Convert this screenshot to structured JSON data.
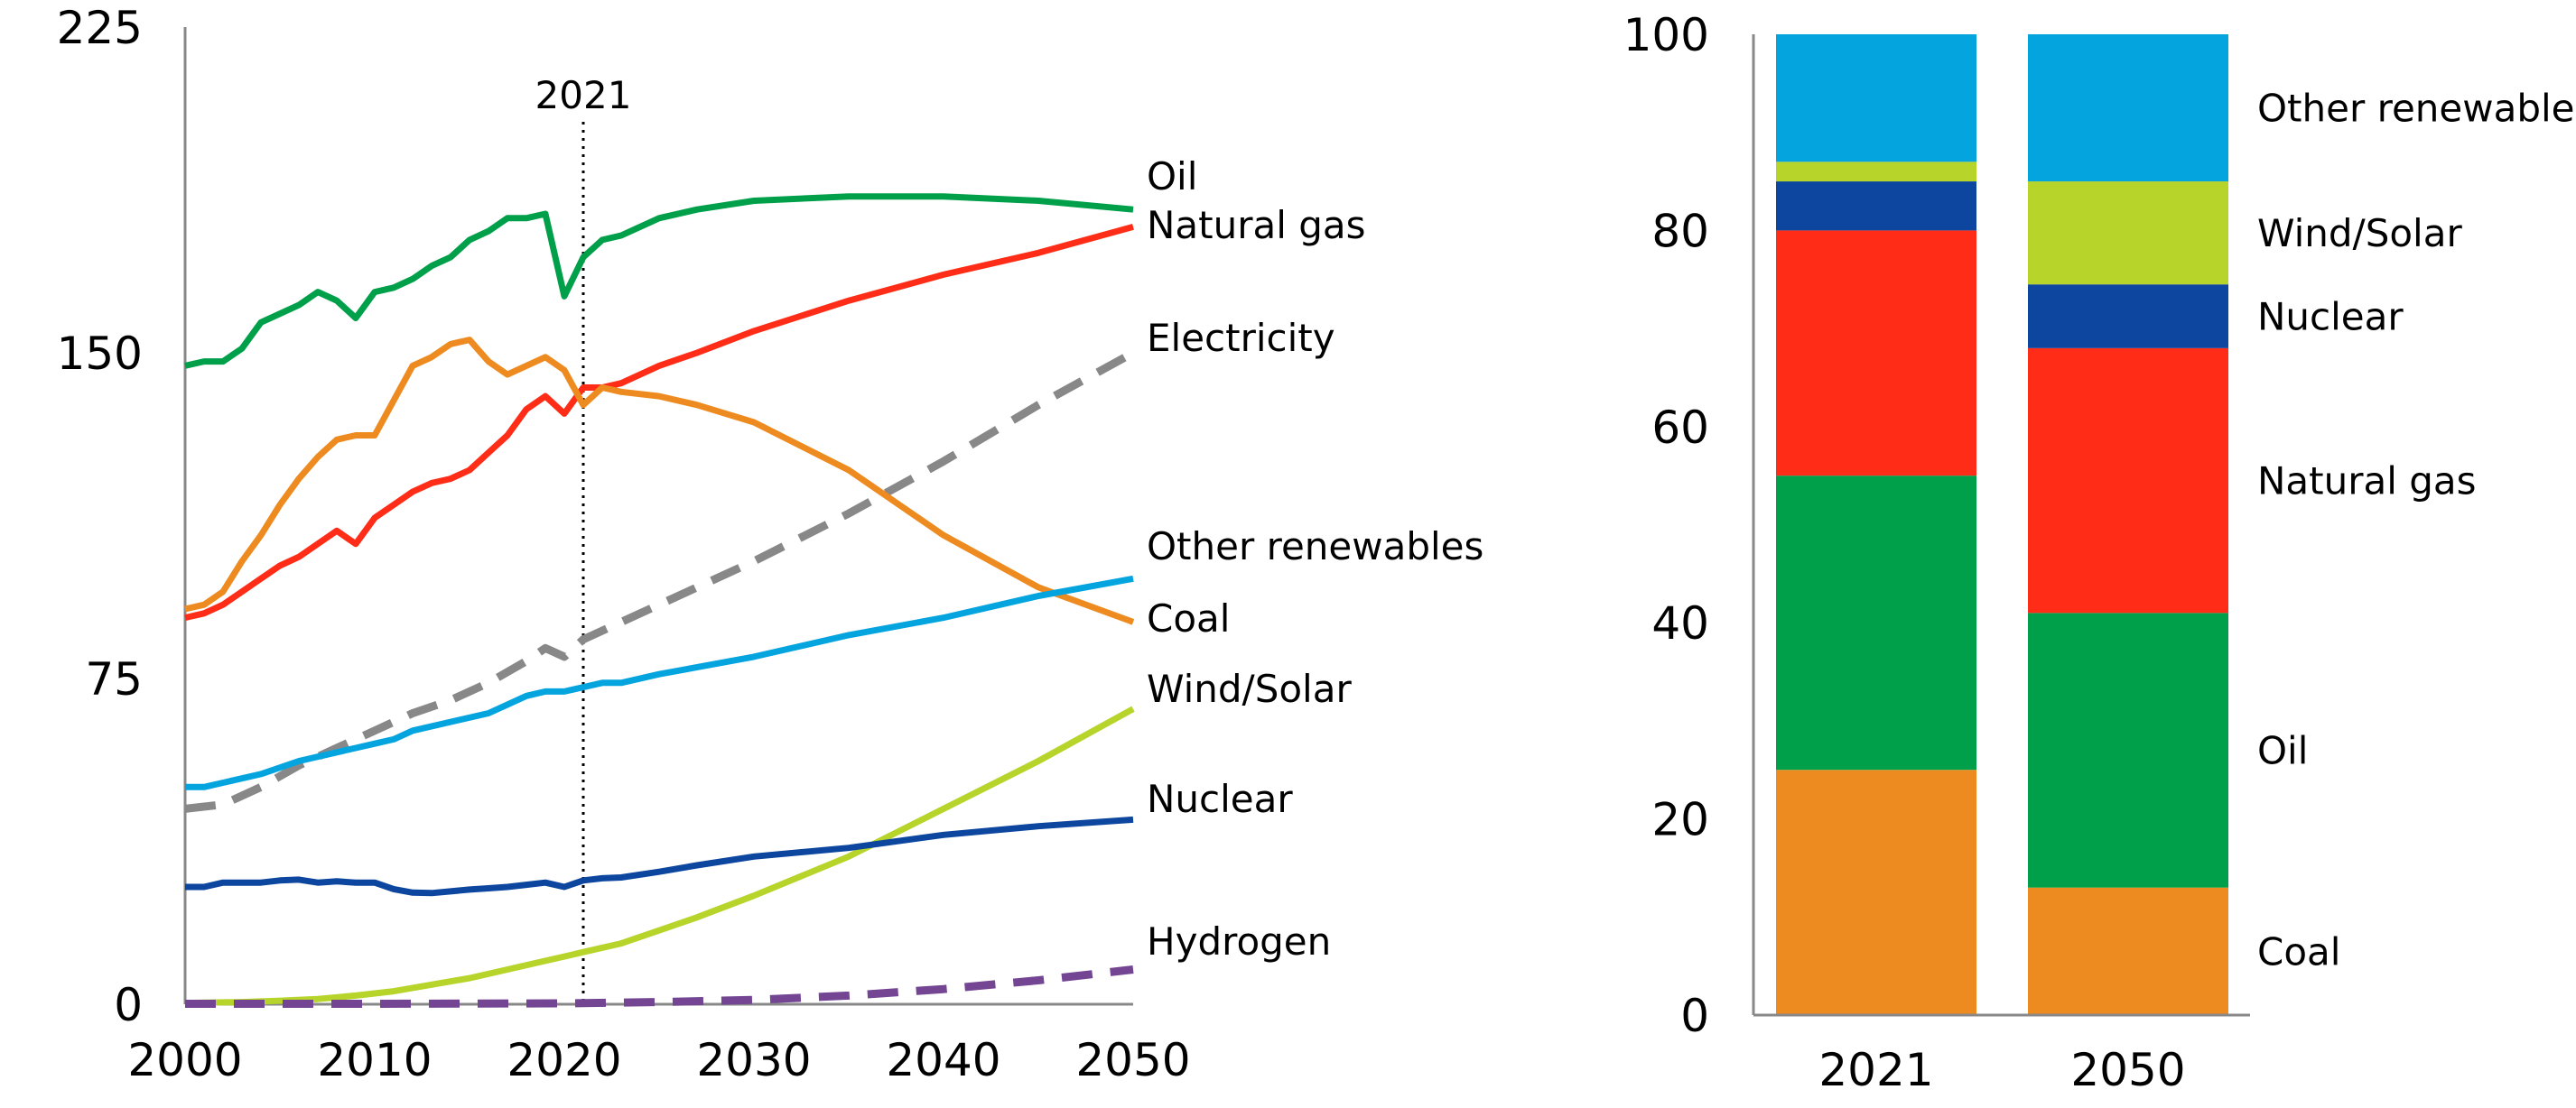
{
  "chart_data": [
    {
      "type": "line",
      "xlim": [
        2000,
        2050
      ],
      "ylim": [
        0,
        225
      ],
      "x_ticks": [
        "2000",
        "2010",
        "2020",
        "2030",
        "2040",
        "2050"
      ],
      "y_ticks": [
        "0",
        "75",
        "150",
        "225"
      ],
      "marker": {
        "label": "2021",
        "x": 2021,
        "style": "dotted"
      },
      "series": [
        {
          "name": "Oil",
          "color": "#00a04a",
          "dash": false,
          "points": [
            [
              2000,
              147
            ],
            [
              2001,
              148
            ],
            [
              2002,
              148
            ],
            [
              2003,
              151
            ],
            [
              2004,
              157
            ],
            [
              2005,
              159
            ],
            [
              2006,
              161
            ],
            [
              2007,
              164
            ],
            [
              2008,
              162
            ],
            [
              2009,
              158
            ],
            [
              2010,
              164
            ],
            [
              2011,
              165
            ],
            [
              2012,
              167
            ],
            [
              2013,
              170
            ],
            [
              2014,
              172
            ],
            [
              2015,
              176
            ],
            [
              2016,
              178
            ],
            [
              2017,
              181
            ],
            [
              2018,
              181
            ],
            [
              2019,
              182
            ],
            [
              2020,
              163
            ],
            [
              2021,
              172
            ],
            [
              2022,
              176
            ],
            [
              2023,
              177
            ],
            [
              2025,
              181
            ],
            [
              2027,
              183
            ],
            [
              2030,
              185
            ],
            [
              2035,
              186
            ],
            [
              2040,
              186
            ],
            [
              2045,
              185
            ],
            [
              2050,
              183
            ]
          ]
        },
        {
          "name": "Natural gas",
          "color": "#ff2d17",
          "dash": false,
          "points": [
            [
              2000,
              89
            ],
            [
              2001,
              90
            ],
            [
              2002,
              92
            ],
            [
              2003,
              95
            ],
            [
              2004,
              98
            ],
            [
              2005,
              101
            ],
            [
              2006,
              103
            ],
            [
              2007,
              106
            ],
            [
              2008,
              109
            ],
            [
              2009,
              106
            ],
            [
              2010,
              112
            ],
            [
              2011,
              115
            ],
            [
              2012,
              118
            ],
            [
              2013,
              120
            ],
            [
              2014,
              121
            ],
            [
              2015,
              123
            ],
            [
              2016,
              127
            ],
            [
              2017,
              131
            ],
            [
              2018,
              137
            ],
            [
              2019,
              140
            ],
            [
              2020,
              136
            ],
            [
              2021,
              142
            ],
            [
              2022,
              142
            ],
            [
              2023,
              143
            ],
            [
              2025,
              147
            ],
            [
              2027,
              150
            ],
            [
              2030,
              155
            ],
            [
              2035,
              162
            ],
            [
              2040,
              168
            ],
            [
              2045,
              173
            ],
            [
              2050,
              179
            ]
          ]
        },
        {
          "name": "Electricity",
          "color": "#888888",
          "dash": true,
          "points": [
            [
              2000,
              45
            ],
            [
              2002,
              46
            ],
            [
              2004,
              50
            ],
            [
              2006,
              55
            ],
            [
              2008,
              59
            ],
            [
              2010,
              63
            ],
            [
              2012,
              67
            ],
            [
              2014,
              70
            ],
            [
              2016,
              74
            ],
            [
              2018,
              79
            ],
            [
              2019,
              82
            ],
            [
              2020,
              80
            ],
            [
              2021,
              84
            ],
            [
              2025,
              92
            ],
            [
              2030,
              102
            ],
            [
              2035,
              113
            ],
            [
              2040,
              125
            ],
            [
              2045,
              138
            ],
            [
              2050,
              150
            ]
          ]
        },
        {
          "name": "Coal",
          "color": "#ee8b20",
          "dash": false,
          "points": [
            [
              2000,
              91
            ],
            [
              2001,
              92
            ],
            [
              2002,
              95
            ],
            [
              2003,
              102
            ],
            [
              2004,
              108
            ],
            [
              2005,
              115
            ],
            [
              2006,
              121
            ],
            [
              2007,
              126
            ],
            [
              2008,
              130
            ],
            [
              2009,
              131
            ],
            [
              2010,
              131
            ],
            [
              2011,
              139
            ],
            [
              2012,
              147
            ],
            [
              2013,
              149
            ],
            [
              2014,
              152
            ],
            [
              2015,
              153
            ],
            [
              2016,
              148
            ],
            [
              2017,
              145
            ],
            [
              2018,
              147
            ],
            [
              2019,
              149
            ],
            [
              2020,
              146
            ],
            [
              2021,
              138
            ],
            [
              2022,
              142
            ],
            [
              2023,
              141
            ],
            [
              2025,
              140
            ],
            [
              2027,
              138
            ],
            [
              2030,
              134
            ],
            [
              2035,
              123
            ],
            [
              2040,
              108
            ],
            [
              2045,
              96
            ],
            [
              2050,
              88
            ]
          ]
        },
        {
          "name": "Other renewables",
          "color": "#04a4df",
          "dash": false,
          "points": [
            [
              2000,
              50
            ],
            [
              2001,
              50
            ],
            [
              2002,
              51
            ],
            [
              2004,
              53
            ],
            [
              2006,
              56
            ],
            [
              2008,
              58
            ],
            [
              2009,
              59
            ],
            [
              2010,
              60
            ],
            [
              2011,
              61
            ],
            [
              2012,
              63
            ],
            [
              2014,
              65
            ],
            [
              2016,
              67
            ],
            [
              2017,
              69
            ],
            [
              2018,
              71
            ],
            [
              2019,
              72
            ],
            [
              2020,
              72
            ],
            [
              2021,
              73
            ],
            [
              2022,
              74
            ],
            [
              2023,
              74
            ],
            [
              2025,
              76
            ],
            [
              2030,
              80
            ],
            [
              2035,
              85
            ],
            [
              2040,
              89
            ],
            [
              2045,
              94
            ],
            [
              2050,
              98
            ]
          ]
        },
        {
          "name": "Wind/Solar",
          "color": "#b6d42a",
          "dash": false,
          "points": [
            [
              2000,
              0.3
            ],
            [
              2003,
              0.5
            ],
            [
              2005,
              0.8
            ],
            [
              2007,
              1.2
            ],
            [
              2009,
              2
            ],
            [
              2011,
              3
            ],
            [
              2013,
              4.5
            ],
            [
              2015,
              6
            ],
            [
              2017,
              8
            ],
            [
              2019,
              10
            ],
            [
              2020,
              11
            ],
            [
              2021,
              12
            ],
            [
              2023,
              14
            ],
            [
              2025,
              17
            ],
            [
              2027,
              20
            ],
            [
              2030,
              25
            ],
            [
              2035,
              34
            ],
            [
              2040,
              45
            ],
            [
              2045,
              56
            ],
            [
              2050,
              68
            ]
          ]
        },
        {
          "name": "Nuclear",
          "color": "#0c469e",
          "dash": false,
          "points": [
            [
              2000,
              27
            ],
            [
              2001,
              27
            ],
            [
              2002,
              28
            ],
            [
              2003,
              28
            ],
            [
              2004,
              28
            ],
            [
              2005,
              28.5
            ],
            [
              2006,
              28.7
            ],
            [
              2007,
              28
            ],
            [
              2008,
              28.3
            ],
            [
              2009,
              28
            ],
            [
              2010,
              28
            ],
            [
              2011,
              26.5
            ],
            [
              2012,
              25.7
            ],
            [
              2013,
              25.6
            ],
            [
              2014,
              26
            ],
            [
              2015,
              26.4
            ],
            [
              2016,
              26.7
            ],
            [
              2017,
              27
            ],
            [
              2018,
              27.5
            ],
            [
              2019,
              28
            ],
            [
              2020,
              27
            ],
            [
              2021,
              28.5
            ],
            [
              2022,
              29
            ],
            [
              2023,
              29.2
            ],
            [
              2025,
              30.5
            ],
            [
              2027,
              32
            ],
            [
              2030,
              34
            ],
            [
              2035,
              36
            ],
            [
              2040,
              39
            ],
            [
              2045,
              41
            ],
            [
              2050,
              42.5
            ]
          ]
        },
        {
          "name": "Hydrogen",
          "color": "#734593",
          "dash": true,
          "points": [
            [
              2000,
              0.1
            ],
            [
              2010,
              0.1
            ],
            [
              2020,
              0.2
            ],
            [
              2025,
              0.5
            ],
            [
              2030,
              1
            ],
            [
              2035,
              2
            ],
            [
              2040,
              3.5
            ],
            [
              2045,
              5.5
            ],
            [
              2050,
              8
            ]
          ]
        }
      ]
    },
    {
      "type": "bar",
      "stacked": true,
      "categories": [
        "2021",
        "2050"
      ],
      "ylim": [
        0,
        100
      ],
      "y_ticks": [
        "0",
        "20",
        "40",
        "60",
        "80",
        "100"
      ],
      "series": [
        {
          "name": "Coal",
          "color": "#ee8b20",
          "values": [
            25,
            13
          ]
        },
        {
          "name": "Oil",
          "color": "#00a04a",
          "values": [
            30,
            28
          ]
        },
        {
          "name": "Natural gas",
          "color": "#ff2d17",
          "values": [
            25,
            27
          ]
        },
        {
          "name": "Nuclear",
          "color": "#0c469e",
          "values": [
            5,
            6.5
          ]
        },
        {
          "name": "Wind/Solar",
          "color": "#b6d42a",
          "values": [
            2,
            10.5
          ]
        },
        {
          "name": "Other renewables",
          "color": "#04a4df",
          "values": [
            13,
            15
          ]
        }
      ]
    }
  ]
}
